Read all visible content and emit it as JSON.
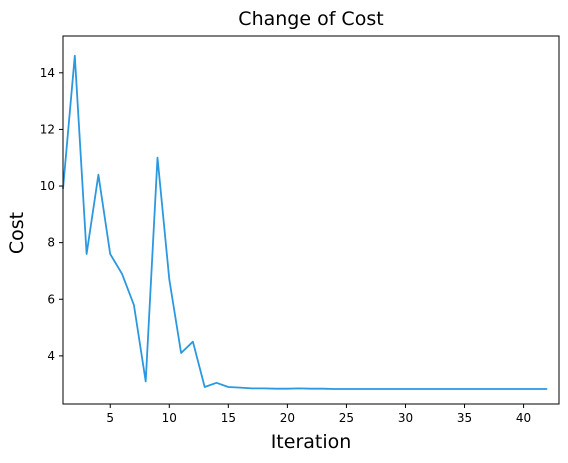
{
  "chart_data": {
    "type": "line",
    "title": "Change of Cost",
    "xlabel": "Iteration",
    "ylabel": "Cost",
    "xlim": [
      1,
      43
    ],
    "ylim": [
      2.3,
      15.3
    ],
    "xticks": [
      5,
      10,
      15,
      20,
      25,
      30,
      35,
      40
    ],
    "yticks": [
      4,
      6,
      8,
      10,
      12,
      14
    ],
    "grid": false,
    "line_color": "#2b98e0",
    "series": [
      {
        "x": [
          1,
          2,
          3,
          4,
          5,
          6,
          7,
          8,
          9,
          10,
          11,
          12,
          13,
          14,
          15,
          16,
          17,
          18,
          19,
          20,
          21,
          22,
          23,
          24,
          25,
          26,
          27,
          28,
          29,
          30,
          31,
          32,
          33,
          34,
          35,
          36,
          37,
          38,
          39,
          40,
          41,
          42
        ],
        "values": [
          9.9,
          14.6,
          7.6,
          10.4,
          7.6,
          6.9,
          5.8,
          3.1,
          11.0,
          6.7,
          4.1,
          4.5,
          2.9,
          3.05,
          2.9,
          2.88,
          2.85,
          2.85,
          2.84,
          2.84,
          2.85,
          2.84,
          2.84,
          2.83,
          2.83,
          2.83,
          2.83,
          2.83,
          2.83,
          2.83,
          2.83,
          2.83,
          2.83,
          2.83,
          2.83,
          2.83,
          2.83,
          2.83,
          2.83,
          2.83,
          2.83,
          2.83
        ]
      }
    ]
  }
}
